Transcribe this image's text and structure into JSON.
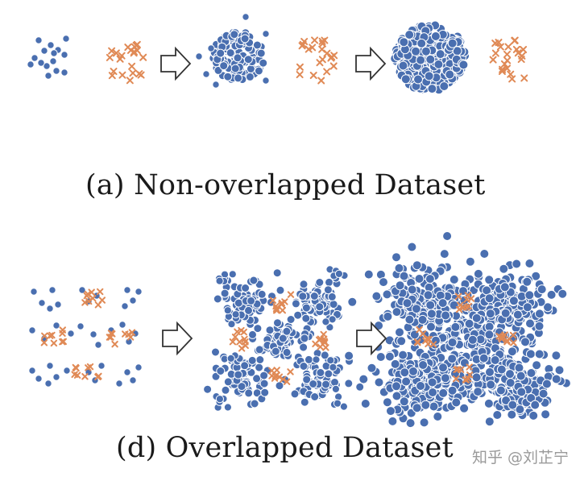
{
  "captions": {
    "a": "(a) Non-overlapped Dataset",
    "d": "(d) Overlapped Dataset"
  },
  "watermark": "知乎 @刘芷宁",
  "colors": {
    "minority_dot": "#4a6fb0",
    "dot_edge": "#ffffff",
    "majority_cross": "#e08a56",
    "arrow_stroke": "#333333"
  },
  "icons": {
    "blue": "circle",
    "orange": "x-cross",
    "arrow": "hollow-right-arrow"
  }
}
